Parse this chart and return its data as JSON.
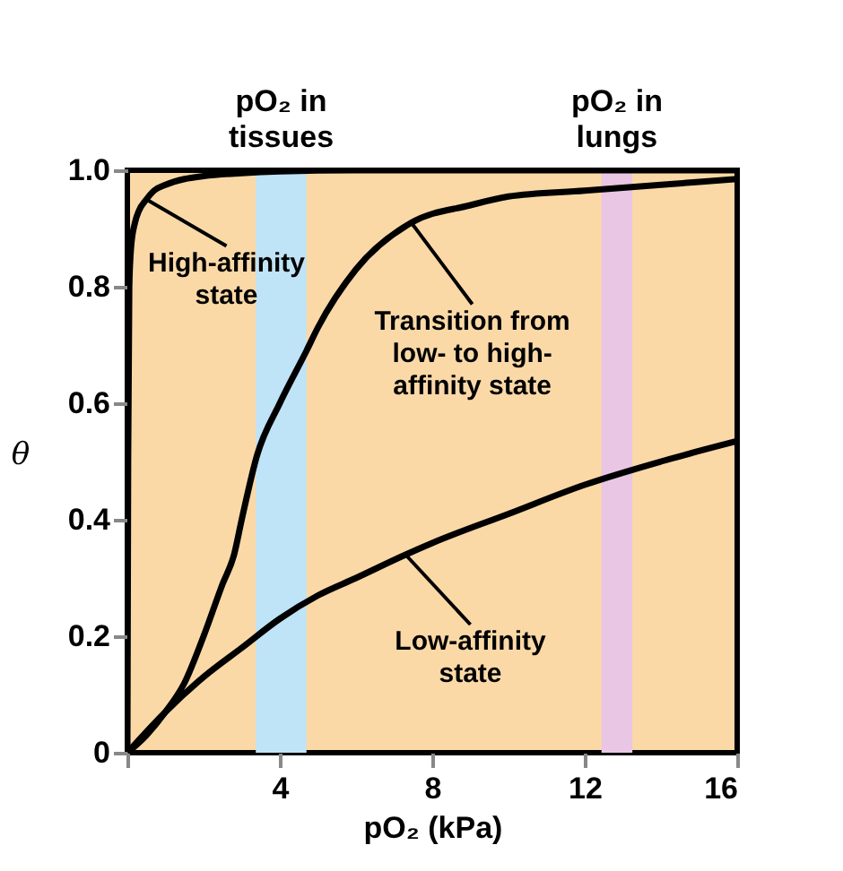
{
  "chart_data": {
    "type": "line",
    "xlabel": "pO₂ (kPa)",
    "ylabel": "θ",
    "xlim": [
      0,
      16
    ],
    "ylim": [
      0,
      1
    ],
    "xticks": [
      {
        "value": 0,
        "label": null
      },
      4,
      8,
      12,
      16
    ],
    "yticks": [
      0,
      0.2,
      0.4,
      0.6,
      0.8,
      {
        "value": 1,
        "label": "1.0"
      }
    ],
    "grid": false,
    "marker": "none",
    "line_style": "solid",
    "series": [
      {
        "color": "#000000",
        "x": [
          0,
          0.02,
          0.05,
          0.1,
          0.2,
          0.3,
          0.5,
          0.7,
          1,
          1.5,
          2,
          3,
          4,
          6,
          8,
          12,
          16
        ],
        "values": [
          0,
          0.5,
          0.8,
          0.87,
          0.91,
          0.93,
          0.95,
          0.965,
          0.975,
          0.985,
          0.99,
          0.995,
          0.998,
          1,
          1,
          1,
          1
        ]
      },
      {
        "color": "#000000",
        "x": [
          0,
          0.5,
          1,
          1.5,
          2,
          2.5,
          2.8,
          3,
          3.4,
          4,
          4.7,
          5,
          6,
          7.45,
          9,
          10,
          12,
          14,
          16
        ],
        "values": [
          0,
          0.03,
          0.07,
          0.12,
          0.2,
          0.29,
          0.34,
          0.4,
          0.51,
          0.6,
          0.69,
          0.73,
          0.83,
          0.91,
          0.94,
          0.955,
          0.965,
          0.975,
          0.985
        ]
      },
      {
        "color": "#000000",
        "x": [
          0,
          1,
          2,
          3,
          4,
          5,
          6,
          7.3,
          8,
          10,
          12,
          14,
          16
        ],
        "values": [
          0,
          0.07,
          0.13,
          0.18,
          0.23,
          0.27,
          0.3,
          0.34,
          0.36,
          0.41,
          0.46,
          0.5,
          0.535
        ]
      }
    ],
    "bands": [
      {
        "axis": "x",
        "from": 3.37,
        "to": 4.7,
        "label": "pO₂ in\ntissues",
        "color": "#bfe3f7"
      },
      {
        "axis": "x",
        "from": 12.44,
        "to": 13.25,
        "label": "pO₂ in\nlungs",
        "color": "#e9c6e3"
      }
    ],
    "annotations": [
      {
        "text": "High-affinity\nstate",
        "x": 0.5,
        "y": 0.95
      },
      {
        "text": "Transition from\nlow- to high-\naffinity state",
        "x": 7.45,
        "y": 0.91
      },
      {
        "text": "Low-affinity\nstate",
        "x": 7.3,
        "y": 0.34
      }
    ]
  }
}
